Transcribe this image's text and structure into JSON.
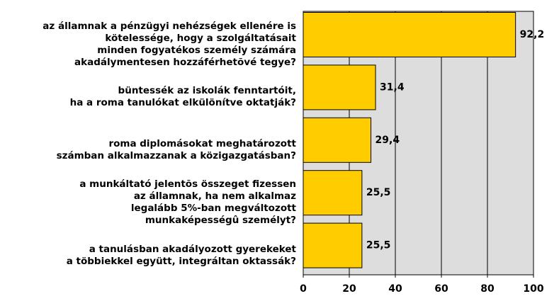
{
  "chart_data": {
    "type": "bar",
    "orientation": "horizontal",
    "categories": [
      "az államnak a pénzügyi nehézségek ellenére is\nkötelessége, hogy a szolgáltatásait\nminden fogyatékos személy számára\nakadálymentesen hozzáférhetõvé tegye?",
      "büntessék az iskolák fenntartóit,\nha a roma tanulókat elkülönítve oktatják?",
      "roma diplomásokat meghatározott\nszámban alkalmazzanak a közigazgatásban?",
      "a munkáltató jelentõs összeget fizessen\naz államnak, ha nem alkalmaz\nlegalább 5%-ban megváltozott\nmunkaképességû személyt?",
      "a tanulásban akadályozott gyerekeket\na többiekkel együtt, integráltan oktassák?"
    ],
    "values": [
      92.2,
      31.4,
      29.4,
      25.5,
      25.5
    ],
    "value_labels": [
      "92,2",
      "31,4",
      "29,4",
      "25,5",
      "25,5"
    ],
    "color": "#ffcc00",
    "xlim": [
      0,
      100
    ],
    "xticks": [
      0,
      20,
      40,
      60,
      80,
      100
    ],
    "grid": true
  }
}
